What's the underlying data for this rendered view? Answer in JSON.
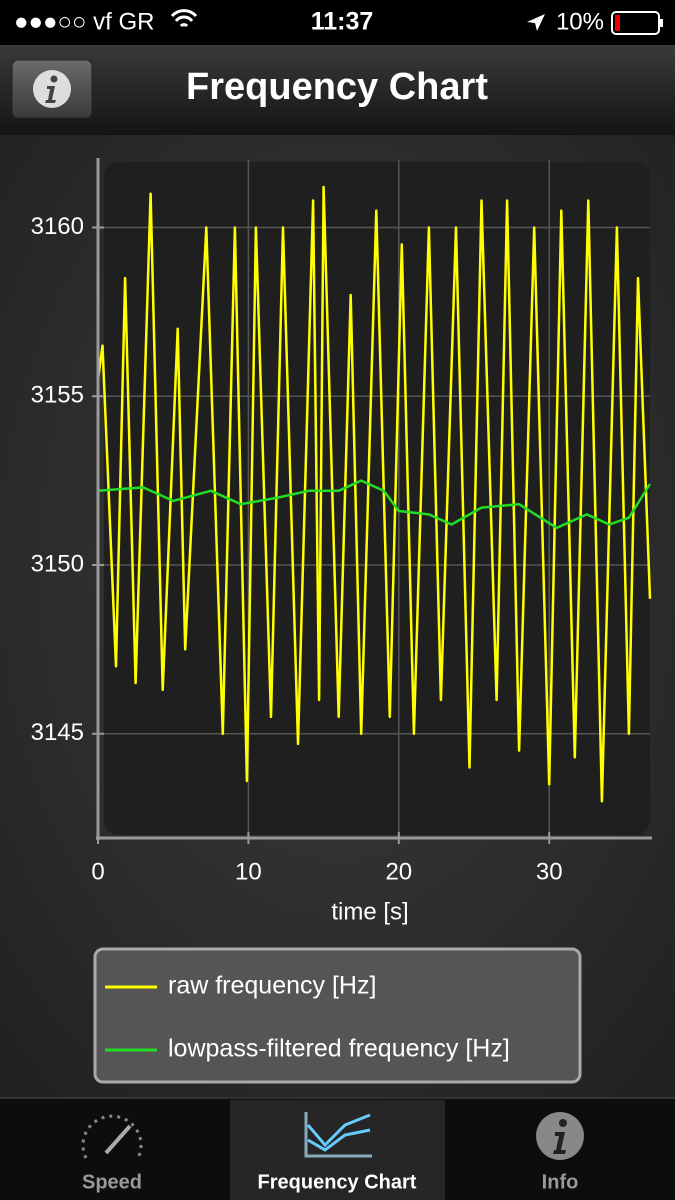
{
  "status_bar": {
    "carrier": "●●●○○ vf GR",
    "time": "11:37",
    "battery": "10%"
  },
  "nav_bar": {
    "title": "Frequency Chart"
  },
  "chart_data": {
    "type": "line",
    "xlabel": "time [s]",
    "xlim": [
      0,
      36.7
    ],
    "ylim": [
      3142,
      3162
    ],
    "xticks": [
      0,
      10,
      20,
      30
    ],
    "yticks": [
      3145,
      3150,
      3155,
      3160
    ],
    "grid": true,
    "series": [
      {
        "name": "raw frequency [Hz]",
        "color": "#ffff00",
        "x": [
          0,
          0.3,
          1.2,
          1.8,
          2.5,
          3.5,
          4.3,
          5.3,
          5.8,
          7.2,
          8.3,
          9.1,
          9.9,
          10.5,
          11.5,
          12.3,
          13.3,
          14.3,
          14.7,
          15.0,
          16.0,
          16.8,
          17.5,
          18.5,
          19.4,
          20.2,
          21.0,
          22.0,
          22.8,
          23.8,
          24.7,
          25.5,
          26.5,
          27.2,
          28.0,
          29.0,
          30.0,
          30.8,
          31.7,
          32.6,
          33.5,
          34.5,
          35.3,
          35.9,
          36.7
        ],
        "values": [
          3155.5,
          3156.5,
          3147,
          3158.5,
          3146.5,
          3161,
          3146.3,
          3157,
          3147.5,
          3160,
          3145,
          3160,
          3143.6,
          3160,
          3145.5,
          3160,
          3144.7,
          3160.8,
          3146,
          3161.2,
          3145.5,
          3158,
          3145,
          3160.5,
          3145.5,
          3159.5,
          3145,
          3160,
          3146,
          3160,
          3144,
          3160.8,
          3146,
          3160.8,
          3144.5,
          3160,
          3143.5,
          3160.5,
          3144.3,
          3160.8,
          3143,
          3160,
          3145,
          3158.5,
          3149
        ]
      },
      {
        "name": "lowpass-filtered frequency [Hz]",
        "color": "#22dd22",
        "x": [
          0,
          3,
          5,
          7.5,
          9.5,
          12,
          14,
          16,
          17.5,
          19,
          20,
          22,
          23.5,
          25.5,
          28,
          30.5,
          32.5,
          34,
          35.3,
          36.7
        ],
        "values": [
          3152.2,
          3152.3,
          3151.9,
          3152.2,
          3151.8,
          3152,
          3152.2,
          3152.2,
          3152.5,
          3152.2,
          3151.6,
          3151.5,
          3151.2,
          3151.7,
          3151.8,
          3151.1,
          3151.5,
          3151.2,
          3151.4,
          3152.4
        ]
      }
    ]
  },
  "tab_bar": {
    "tabs": [
      "Speed",
      "Frequency Chart",
      "Info"
    ],
    "selected": 1
  }
}
